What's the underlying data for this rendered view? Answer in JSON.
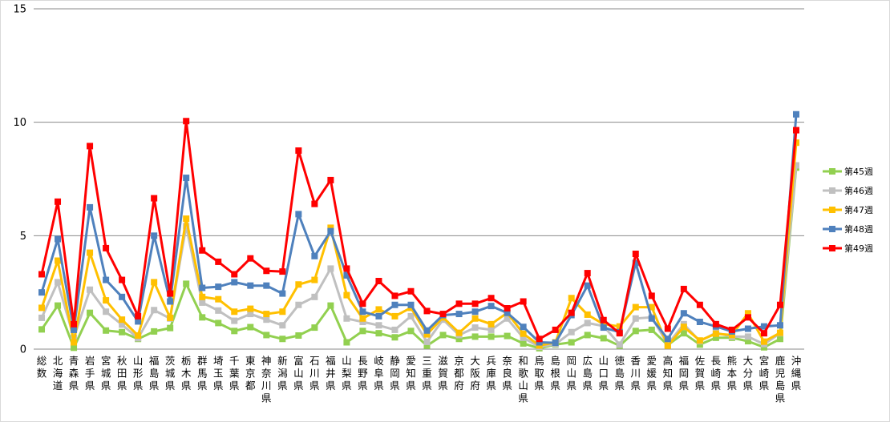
{
  "chart_data": {
    "type": "line",
    "title": "",
    "xlabel": "",
    "ylabel": "",
    "ylim": [
      0,
      15
    ],
    "yticks": [
      "0",
      "5",
      "10",
      "15"
    ],
    "grid": true,
    "legend_position": "right",
    "categories": [
      "総数",
      "北海道",
      "青森県",
      "岩手県",
      "宮城県",
      "秋田県",
      "山形県",
      "福島県",
      "茨城県",
      "栃木県",
      "群馬県",
      "埼玉県",
      "千葉県",
      "東京都",
      "神奈川県",
      "新潟県",
      "富山県",
      "石川県",
      "福井県",
      "山梨県",
      "長野県",
      "岐阜県",
      "静岡県",
      "愛知県",
      "三重県",
      "滋賀県",
      "京都府",
      "大阪府",
      "兵庫県",
      "奈良県",
      "和歌山県",
      "鳥取県",
      "島根県",
      "岡山県",
      "広島県",
      "山口県",
      "徳島県",
      "香川県",
      "愛媛県",
      "高知県",
      "福岡県",
      "佐賀県",
      "長崎県",
      "熊本県",
      "大分県",
      "宮崎県",
      "鹿児島県",
      "沖縄県"
    ],
    "series": [
      {
        "name": "第45週",
        "color": "#92d050",
        "values": [
          0.87,
          1.92,
          0.06,
          1.6,
          0.82,
          0.75,
          0.45,
          0.78,
          0.93,
          2.88,
          1.4,
          1.15,
          0.8,
          0.97,
          0.62,
          0.45,
          0.6,
          0.95,
          1.92,
          0.3,
          0.8,
          0.7,
          0.52,
          0.8,
          0.15,
          0.62,
          0.45,
          0.55,
          0.55,
          0.58,
          0.25,
          0.04,
          0.2,
          0.3,
          0.62,
          0.48,
          0.15,
          0.8,
          0.85,
          0.18,
          0.7,
          0.2,
          0.5,
          0.5,
          0.35,
          0.08,
          0.45,
          8.0
        ]
      },
      {
        "name": "第46週",
        "color": "#c0c0c0",
        "values": [
          1.38,
          2.95,
          0.5,
          2.62,
          1.65,
          1.08,
          0.48,
          1.72,
          1.35,
          5.42,
          2.05,
          1.7,
          1.25,
          1.55,
          1.3,
          1.05,
          1.95,
          2.3,
          3.55,
          1.35,
          1.2,
          1.05,
          0.85,
          1.45,
          0.32,
          1.3,
          0.62,
          0.95,
          0.85,
          1.35,
          0.5,
          0.1,
          0.22,
          0.75,
          1.15,
          1.02,
          0.2,
          1.35,
          1.4,
          0.22,
          1.1,
          0.35,
          0.72,
          0.55,
          0.55,
          0.22,
          0.7,
          8.1
        ]
      },
      {
        "name": "第47週",
        "color": "#ffc000",
        "values": [
          1.82,
          3.9,
          0.3,
          4.25,
          2.15,
          1.3,
          0.6,
          2.95,
          1.38,
          5.75,
          2.3,
          2.2,
          1.65,
          1.78,
          1.55,
          1.65,
          2.85,
          3.05,
          5.35,
          2.38,
          1.35,
          1.75,
          1.45,
          1.82,
          0.65,
          1.4,
          0.72,
          1.35,
          1.1,
          1.6,
          0.68,
          0.16,
          0.3,
          2.25,
          1.52,
          1.1,
          1.0,
          1.85,
          1.85,
          0.15,
          0.98,
          0.38,
          0.68,
          0.62,
          1.58,
          0.33,
          0.72,
          9.1
        ]
      },
      {
        "name": "第48週",
        "color": "#4f81bd",
        "values": [
          2.5,
          4.85,
          0.85,
          6.25,
          3.05,
          2.3,
          1.22,
          5.0,
          2.1,
          7.55,
          2.7,
          2.75,
          2.95,
          2.8,
          2.8,
          2.45,
          5.95,
          4.1,
          5.2,
          3.25,
          1.65,
          1.45,
          1.95,
          1.95,
          0.82,
          1.5,
          1.55,
          1.65,
          1.9,
          1.6,
          0.98,
          0.3,
          0.28,
          1.5,
          2.8,
          0.95,
          0.75,
          3.8,
          1.35,
          0.45,
          1.58,
          1.2,
          1.0,
          0.78,
          0.9,
          1.0,
          1.05,
          10.35
        ]
      },
      {
        "name": "第49週",
        "color": "#ff0000",
        "values": [
          3.3,
          6.5,
          1.1,
          8.95,
          4.45,
          3.05,
          1.45,
          6.65,
          2.45,
          10.05,
          4.35,
          3.85,
          3.3,
          4.0,
          3.45,
          3.42,
          8.75,
          6.4,
          7.45,
          3.55,
          2.0,
          3.0,
          2.35,
          2.55,
          1.68,
          1.55,
          2.0,
          2.0,
          2.25,
          1.8,
          2.1,
          0.45,
          0.85,
          1.6,
          3.35,
          1.28,
          0.7,
          4.2,
          2.35,
          0.9,
          2.65,
          1.95,
          1.1,
          0.85,
          1.4,
          0.7,
          1.95,
          9.65
        ]
      }
    ]
  }
}
